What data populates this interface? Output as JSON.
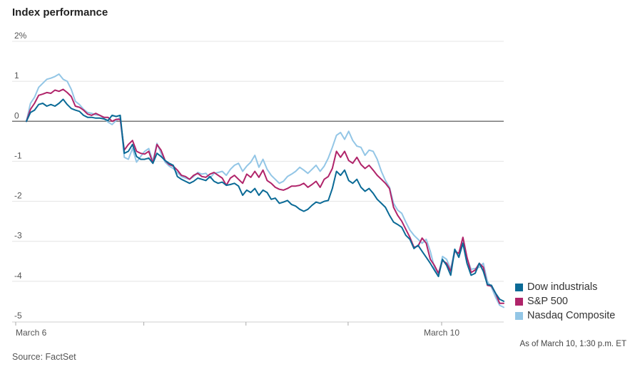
{
  "title": "Index performance",
  "chart_data": {
    "type": "line",
    "ylim": [
      -5,
      2
    ],
    "y_ticks": [
      2,
      1,
      0,
      -1,
      -2,
      -3,
      -4,
      -5
    ],
    "y_tick_labels": [
      "2%",
      "1",
      "0",
      "-1",
      "-2",
      "-3",
      "-4",
      "-5"
    ],
    "x_tick_labels": [
      "March 6",
      "March 10"
    ],
    "x_positions": [
      0,
      1,
      2,
      3,
      4,
      5,
      6,
      7,
      8,
      9,
      10,
      11,
      12,
      13,
      14,
      15,
      16,
      17,
      18,
      19,
      20,
      21,
      22,
      23,
      24,
      25,
      26,
      27,
      28,
      29,
      30,
      31,
      32,
      33,
      34,
      35,
      36,
      37,
      38,
      39,
      40,
      41,
      42,
      43,
      44,
      45,
      46,
      47,
      48,
      49,
      50,
      51,
      52,
      53,
      54,
      55,
      56,
      57,
      58,
      59,
      60,
      61,
      62,
      63,
      64,
      65,
      66,
      67,
      68,
      69,
      70,
      71,
      72,
      73,
      74,
      75,
      76,
      77,
      78,
      79,
      80,
      81,
      82,
      83,
      84,
      85,
      86,
      87,
      88,
      89,
      90,
      91,
      92,
      93,
      94,
      95,
      96,
      97,
      98,
      99,
      100,
      101,
      102,
      103,
      104,
      105,
      106,
      107,
      108,
      109,
      110,
      111,
      112,
      113,
      114,
      115,
      116,
      117
    ],
    "series": [
      {
        "name": "Nasdaq Composite",
        "color": "#93c6e6",
        "values": [
          0.0,
          0.45,
          0.6,
          0.85,
          0.95,
          1.05,
          1.08,
          1.12,
          1.18,
          1.05,
          1.0,
          0.8,
          0.5,
          0.42,
          0.3,
          0.22,
          0.2,
          0.16,
          0.15,
          0.08,
          -0.02,
          -0.08,
          0.02,
          0.1,
          -0.9,
          -0.95,
          -0.68,
          -1.02,
          -0.88,
          -0.75,
          -0.68,
          -1.0,
          -0.55,
          -0.8,
          -1.02,
          -1.12,
          -1.18,
          -1.28,
          -1.38,
          -1.42,
          -1.45,
          -1.38,
          -1.28,
          -1.32,
          -1.3,
          -1.42,
          -1.3,
          -1.28,
          -1.25,
          -1.35,
          -1.2,
          -1.1,
          -1.05,
          -1.25,
          -1.12,
          -1.02,
          -0.85,
          -1.15,
          -0.95,
          -1.2,
          -1.35,
          -1.45,
          -1.55,
          -1.5,
          -1.38,
          -1.32,
          -1.25,
          -1.15,
          -1.22,
          -1.3,
          -1.2,
          -1.1,
          -1.25,
          -1.12,
          -0.92,
          -0.65,
          -0.35,
          -0.28,
          -0.45,
          -0.25,
          -0.48,
          -0.62,
          -0.65,
          -0.85,
          -0.72,
          -0.75,
          -0.95,
          -1.25,
          -1.48,
          -1.65,
          -2.05,
          -2.22,
          -2.3,
          -2.52,
          -2.72,
          -2.85,
          -2.95,
          -3.05,
          -2.95,
          -3.25,
          -3.65,
          -3.85,
          -3.38,
          -3.45,
          -3.7,
          -3.2,
          -3.35,
          -2.95,
          -3.42,
          -3.7,
          -3.68,
          -3.65,
          -3.55,
          -4.0,
          -4.15,
          -4.4,
          -4.6,
          -4.65
        ]
      },
      {
        "name": "S&P 500",
        "color": "#b0246a",
        "values": [
          0.0,
          0.3,
          0.45,
          0.65,
          0.68,
          0.72,
          0.7,
          0.78,
          0.75,
          0.8,
          0.72,
          0.62,
          0.38,
          0.35,
          0.28,
          0.18,
          0.15,
          0.2,
          0.15,
          0.1,
          0.1,
          0.0,
          0.05,
          0.05,
          -0.72,
          -0.58,
          -0.48,
          -0.75,
          -0.8,
          -0.82,
          -0.75,
          -1.05,
          -0.58,
          -0.72,
          -0.98,
          -1.08,
          -1.12,
          -1.22,
          -1.35,
          -1.38,
          -1.45,
          -1.35,
          -1.3,
          -1.38,
          -1.4,
          -1.32,
          -1.28,
          -1.35,
          -1.42,
          -1.6,
          -1.42,
          -1.35,
          -1.45,
          -1.55,
          -1.32,
          -1.4,
          -1.25,
          -1.4,
          -1.22,
          -1.48,
          -1.55,
          -1.65,
          -1.7,
          -1.72,
          -1.68,
          -1.62,
          -1.62,
          -1.6,
          -1.55,
          -1.65,
          -1.58,
          -1.5,
          -1.65,
          -1.45,
          -1.38,
          -1.18,
          -0.75,
          -0.9,
          -0.75,
          -0.98,
          -1.05,
          -0.9,
          -1.08,
          -1.18,
          -1.1,
          -1.22,
          -1.35,
          -1.45,
          -1.55,
          -1.68,
          -2.15,
          -2.35,
          -2.5,
          -2.7,
          -2.9,
          -3.15,
          -3.12,
          -2.92,
          -3.05,
          -3.45,
          -3.6,
          -3.8,
          -3.48,
          -3.55,
          -3.75,
          -3.25,
          -3.3,
          -2.9,
          -3.4,
          -3.78,
          -3.72,
          -3.55,
          -3.65,
          -4.1,
          -4.12,
          -4.3,
          -4.55,
          -4.55
        ]
      },
      {
        "name": "Dow industrials",
        "color": "#0a6a96",
        "values": [
          0.0,
          0.22,
          0.28,
          0.42,
          0.45,
          0.38,
          0.42,
          0.38,
          0.45,
          0.55,
          0.42,
          0.32,
          0.28,
          0.25,
          0.15,
          0.1,
          0.1,
          0.08,
          0.08,
          0.06,
          0.02,
          0.15,
          0.12,
          0.15,
          -0.8,
          -0.75,
          -0.58,
          -0.88,
          -0.95,
          -0.95,
          -0.92,
          -1.05,
          -0.8,
          -0.88,
          -0.98,
          -1.05,
          -1.1,
          -1.38,
          -1.45,
          -1.5,
          -1.55,
          -1.5,
          -1.42,
          -1.45,
          -1.48,
          -1.38,
          -1.5,
          -1.55,
          -1.52,
          -1.6,
          -1.58,
          -1.55,
          -1.62,
          -1.85,
          -1.72,
          -1.78,
          -1.68,
          -1.85,
          -1.72,
          -1.78,
          -1.95,
          -1.92,
          -2.05,
          -2.02,
          -1.98,
          -2.08,
          -2.12,
          -2.2,
          -2.25,
          -2.2,
          -2.1,
          -2.02,
          -2.05,
          -2.0,
          -1.98,
          -1.68,
          -1.25,
          -1.35,
          -1.22,
          -1.48,
          -1.55,
          -1.45,
          -1.65,
          -1.75,
          -1.68,
          -1.8,
          -1.95,
          -2.05,
          -2.15,
          -2.35,
          -2.52,
          -2.58,
          -2.65,
          -2.85,
          -2.95,
          -3.18,
          -3.1,
          -3.25,
          -3.4,
          -3.55,
          -3.72,
          -3.88,
          -3.45,
          -3.6,
          -3.85,
          -3.2,
          -3.4,
          -3.05,
          -3.55,
          -3.85,
          -3.8,
          -3.55,
          -3.75,
          -4.08,
          -4.1,
          -4.3,
          -4.45,
          -4.5
        ]
      }
    ]
  },
  "legend": [
    {
      "label": "Dow industrials",
      "color": "#0a6a96"
    },
    {
      "label": "S&P 500",
      "color": "#b0246a"
    },
    {
      "label": "Nasdaq Composite",
      "color": "#93c6e6"
    }
  ],
  "as_of": "As of March 10, 1:30 p.m. ET",
  "source": "Source: FactSet"
}
